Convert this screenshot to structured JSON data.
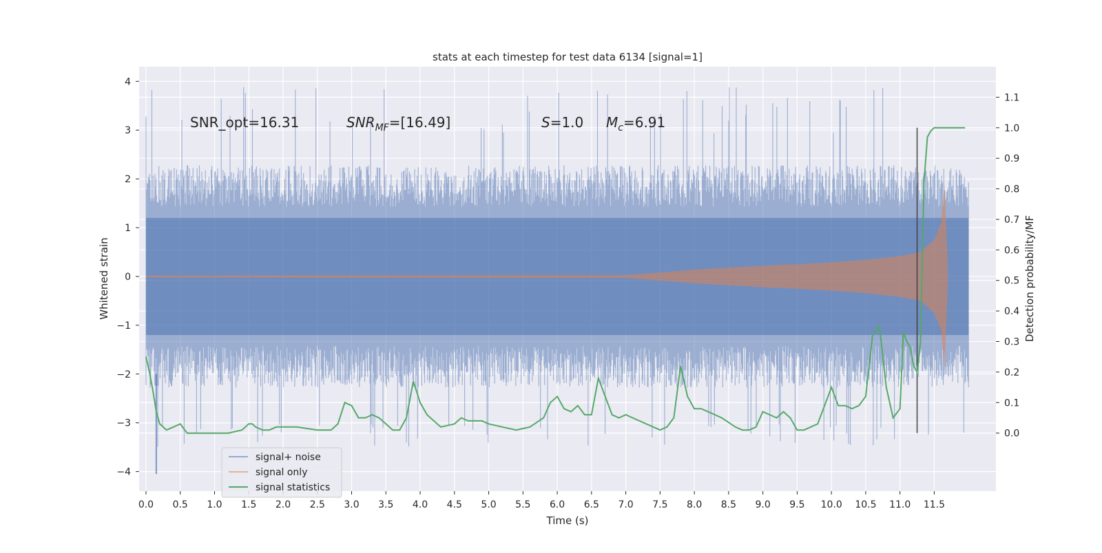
{
  "chart_data": {
    "type": "line",
    "title": "stats at each timestep for test data 6134 [signal=1]",
    "xlabel": "Time (s)",
    "ylabel": "Whitened strain",
    "y2label": "Detection probability/MF",
    "xlim": [
      -0.1,
      12.4
    ],
    "ylim": [
      -4.4,
      4.3
    ],
    "y2lim": [
      -0.19,
      1.2
    ],
    "x_ticks": [
      "0.0",
      "0.5",
      "1.0",
      "1.5",
      "2.0",
      "2.5",
      "3.0",
      "3.5",
      "4.0",
      "4.5",
      "5.0",
      "5.5",
      "6.0",
      "6.5",
      "7.0",
      "7.5",
      "8.0",
      "8.5",
      "9.0",
      "9.5",
      "10.0",
      "10.5",
      "11.0",
      "11.5"
    ],
    "y_ticks": [
      "4",
      "3",
      "2",
      "1",
      "0",
      "−1",
      "−2",
      "−3",
      "−4"
    ],
    "y2_ticks": [
      "1.1",
      "1.0",
      "0.9",
      "0.8",
      "0.7",
      "0.6",
      "0.5",
      "0.4",
      "0.3",
      "0.2",
      "0.1",
      "0.0"
    ],
    "grid": true,
    "legend_position": "lower-left",
    "annotations": {
      "snr_opt": "SNR_opt=16.31",
      "snr_mf_base": "SNR",
      "snr_mf_sub": "MF",
      "snr_mf_value": "=[16.49]",
      "s_symbol": "S",
      "s_value": "=1.0",
      "mc_symbol": "M",
      "mc_sub": "c",
      "mc_value": "=6.91"
    },
    "vertical_marker_x": 11.25,
    "series": [
      {
        "name": "signal+ noise",
        "color": "#4c72b0",
        "envelope": {
          "x_start": 0.0,
          "x_end": 12.0,
          "typical_abs": 1.9,
          "max": 3.9,
          "min": -4.05
        }
      },
      {
        "name": "signal only",
        "color": "#dd8452",
        "envelope": {
          "x": [
            0.0,
            7.0,
            7.5,
            8.0,
            8.5,
            9.0,
            9.5,
            10.0,
            10.5,
            11.0,
            11.3,
            11.5,
            11.6,
            11.65,
            11.7
          ],
          "amp": [
            0.02,
            0.03,
            0.08,
            0.14,
            0.18,
            0.22,
            0.25,
            0.29,
            0.34,
            0.42,
            0.5,
            0.75,
            1.1,
            1.9,
            0.1
          ]
        }
      },
      {
        "name": "signal statistics",
        "color": "#55a868",
        "x": [
          0.0,
          0.05,
          0.1,
          0.15,
          0.2,
          0.3,
          0.4,
          0.5,
          0.6,
          0.8,
          1.0,
          1.2,
          1.4,
          1.5,
          1.55,
          1.6,
          1.7,
          1.8,
          1.9,
          2.0,
          2.2,
          2.5,
          2.7,
          2.8,
          2.9,
          3.0,
          3.1,
          3.2,
          3.3,
          3.4,
          3.5,
          3.6,
          3.7,
          3.8,
          3.9,
          4.0,
          4.1,
          4.3,
          4.5,
          4.6,
          4.7,
          4.8,
          4.9,
          5.0,
          5.2,
          5.4,
          5.6,
          5.8,
          5.9,
          6.0,
          6.1,
          6.2,
          6.3,
          6.4,
          6.5,
          6.6,
          6.7,
          6.8,
          6.9,
          7.0,
          7.1,
          7.3,
          7.5,
          7.6,
          7.7,
          7.8,
          7.9,
          8.0,
          8.1,
          8.2,
          8.4,
          8.6,
          8.7,
          8.8,
          8.9,
          9.0,
          9.1,
          9.2,
          9.3,
          9.4,
          9.5,
          9.6,
          9.8,
          10.0,
          10.1,
          10.2,
          10.3,
          10.4,
          10.5,
          10.6,
          10.7,
          10.8,
          10.9,
          11.0,
          11.05,
          11.1,
          11.15,
          11.2,
          11.25,
          11.3,
          11.35,
          11.4,
          11.45,
          11.5,
          11.6,
          11.7,
          11.8,
          11.9,
          11.95
        ],
        "y": [
          0.25,
          0.2,
          0.14,
          0.07,
          0.03,
          0.01,
          0.02,
          0.03,
          0.0,
          0.0,
          0.0,
          0.0,
          0.01,
          0.03,
          0.03,
          0.02,
          0.01,
          0.01,
          0.02,
          0.02,
          0.02,
          0.01,
          0.01,
          0.03,
          0.1,
          0.09,
          0.05,
          0.05,
          0.06,
          0.05,
          0.03,
          0.01,
          0.01,
          0.05,
          0.17,
          0.1,
          0.06,
          0.02,
          0.03,
          0.05,
          0.04,
          0.04,
          0.04,
          0.03,
          0.02,
          0.01,
          0.02,
          0.05,
          0.1,
          0.12,
          0.08,
          0.07,
          0.09,
          0.06,
          0.06,
          0.18,
          0.12,
          0.06,
          0.05,
          0.06,
          0.05,
          0.03,
          0.01,
          0.02,
          0.05,
          0.22,
          0.12,
          0.08,
          0.08,
          0.07,
          0.05,
          0.02,
          0.01,
          0.01,
          0.02,
          0.07,
          0.06,
          0.05,
          0.07,
          0.05,
          0.01,
          0.01,
          0.03,
          0.15,
          0.09,
          0.09,
          0.08,
          0.09,
          0.12,
          0.32,
          0.35,
          0.15,
          0.05,
          0.08,
          0.33,
          0.3,
          0.28,
          0.22,
          0.2,
          0.3,
          0.82,
          0.97,
          0.99,
          1.0,
          1.0,
          1.0,
          1.0,
          1.0,
          1.0
        ]
      }
    ]
  }
}
